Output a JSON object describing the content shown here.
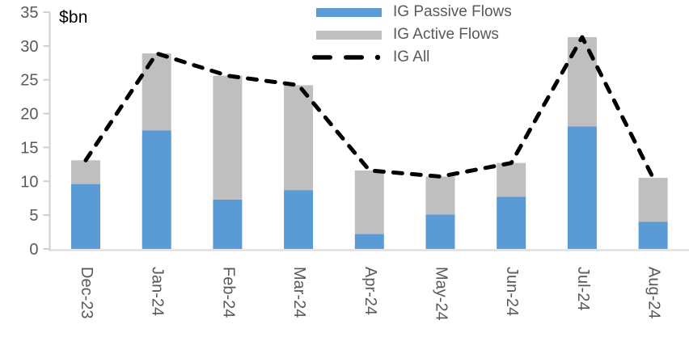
{
  "chart_data": {
    "type": "bar",
    "subtype": "stacked_bars_with_dashed_line_overlay",
    "title": "",
    "unit_label": "$bn",
    "xlabel": "",
    "ylabel": "$bn",
    "categories": [
      "Dec-23",
      "Jan-24",
      "Feb-24",
      "Mar-24",
      "Apr-24",
      "May-24",
      "Jun-24",
      "Jul-24",
      "Aug-24"
    ],
    "series": [
      {
        "name": "IG Passive Flows",
        "type": "bar",
        "stack": "flows",
        "color": "#5B9BD5",
        "values": [
          9.6,
          17.5,
          7.3,
          8.7,
          2.2,
          5.1,
          7.7,
          18.1,
          4.0
        ]
      },
      {
        "name": "IG Active Flows",
        "type": "bar",
        "stack": "flows",
        "color": "#BFBFBF",
        "values": [
          3.5,
          11.4,
          18.3,
          15.5,
          9.4,
          5.6,
          5.0,
          13.2,
          6.5
        ]
      },
      {
        "name": "IG All",
        "type": "line",
        "line_style": "dashed",
        "color": "#000000",
        "values": [
          13.1,
          28.9,
          25.6,
          24.2,
          11.6,
          10.7,
          12.7,
          31.3,
          10.5
        ]
      }
    ],
    "ylim": [
      0,
      35
    ],
    "yticks": [
      0,
      5,
      10,
      15,
      20,
      25,
      30,
      35
    ],
    "grid": false,
    "legend_position": "top-center",
    "x_tick_label_rotation_deg": 90,
    "colors": {
      "axis_text": "#595959",
      "axis_line": "#CFCFCF",
      "baseline": "#D9D9D9",
      "unit_label_text": "#000000"
    }
  }
}
